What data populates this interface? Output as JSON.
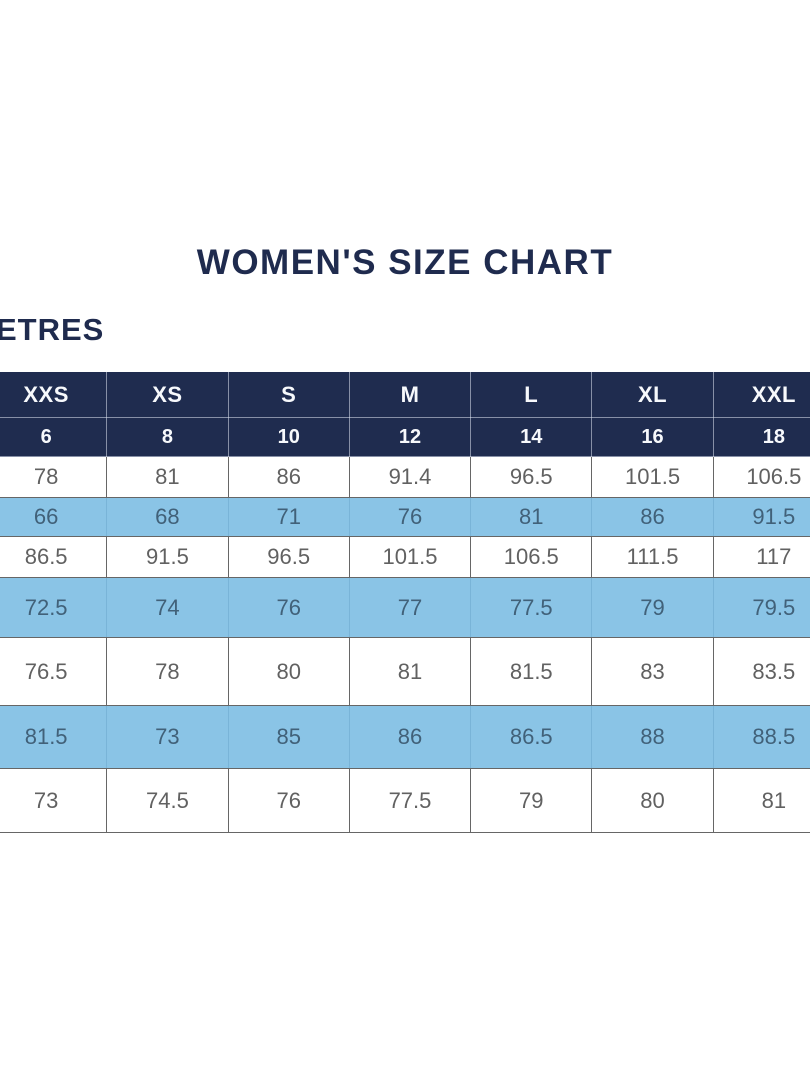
{
  "page": {
    "title": "WOMEN'S SIZE CHART",
    "units_label_visible": "ETRES"
  },
  "colors": {
    "header_navy": "#1f2c4f",
    "title_navy": "#1f2b4e",
    "highlight_blue": "#8ac4e6",
    "body_text_gray": "#616161",
    "highlight_text_blue": "#416179",
    "grid_line": "#666666",
    "background": "#ffffff"
  },
  "chart_data": {
    "type": "table",
    "title": "WOMEN'S SIZE CHART",
    "unit_label_visible": "ETRES",
    "size_labels": [
      "XXS",
      "XS",
      "S",
      "M",
      "L",
      "XL",
      "XXL"
    ],
    "numeric_sizes": [
      6,
      8,
      10,
      12,
      14,
      16,
      18
    ],
    "rows": [
      [
        78,
        81,
        86,
        91.4,
        96.5,
        101.5,
        106.5
      ],
      [
        66,
        68,
        71,
        76,
        81,
        86,
        91.5
      ],
      [
        86.5,
        91.5,
        96.5,
        101.5,
        106.5,
        111.5,
        117
      ],
      [
        72.5,
        74,
        76,
        77,
        77.5,
        79,
        79.5
      ],
      [
        76.5,
        78,
        80,
        81,
        81.5,
        83,
        83.5
      ],
      [
        81.5,
        73,
        85,
        86,
        86.5,
        88,
        88.5
      ],
      [
        73,
        74.5,
        76,
        77.5,
        79,
        80,
        81
      ]
    ],
    "highlighted_row_indexes": [
      1,
      3,
      5
    ],
    "layout_notes": "left edge of first column and right edge of last column are clipped by the viewport; rows alternate white and light blue"
  }
}
